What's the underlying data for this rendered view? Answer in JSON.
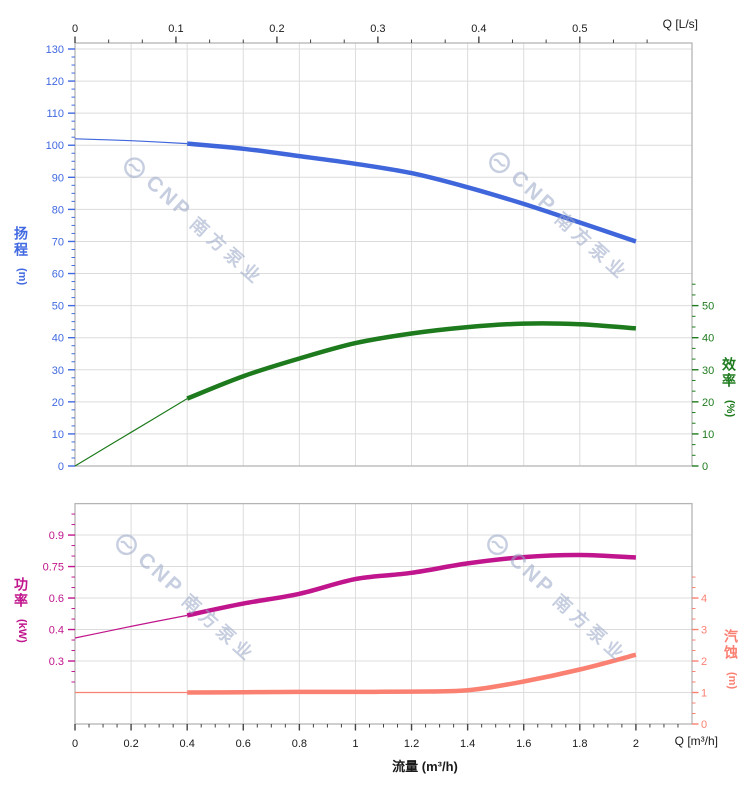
{
  "axes": {
    "top_flow": {
      "title": "Q [L/s]",
      "color": "#1a1a1a",
      "tick_labels": [
        "0",
        "0.1",
        "0.2",
        "0.3",
        "0.4",
        "0.5"
      ]
    },
    "bottom_flow": {
      "title": "Q [m³/h]",
      "xlabel": "流量 (m³/h)",
      "color": "#1a1a1a",
      "tick_labels": [
        "0",
        "0.2",
        "0.4",
        "0.6",
        "0.8",
        "1",
        "1.2",
        "1.4",
        "1.6",
        "1.8",
        "2"
      ]
    },
    "head": {
      "title": "扬程",
      "unit": "(m)",
      "color": "#4169E1",
      "tick_labels": [
        "0",
        "10",
        "20",
        "30",
        "40",
        "50",
        "60",
        "70",
        "80",
        "90",
        "100",
        "110",
        "120",
        "130"
      ]
    },
    "efficiency": {
      "title": "效率",
      "unit": "(%)",
      "color": "#1E7B1E",
      "tick_labels": [
        "0",
        "10",
        "20",
        "30",
        "40",
        "50"
      ]
    },
    "power": {
      "title": "功率",
      "unit": "(kW)",
      "color": "#C0158C",
      "tick_labels": [
        "0.3",
        "0.4",
        "0.6",
        "0.75",
        "0.9"
      ]
    },
    "npsh": {
      "title": "汽蚀",
      "unit": "(m)",
      "color": "#FA8072",
      "tick_labels": [
        "0",
        "1",
        "2",
        "3",
        "4"
      ]
    }
  },
  "watermark": {
    "brand": "CNP",
    "company": "南方泵业"
  },
  "chart_data": {
    "type": "line",
    "x_unit": "m³/h",
    "x_range": [
      0,
      2.2
    ],
    "rated_flow_range": [
      0.4,
      2.0
    ],
    "x": [
      0,
      0.2,
      0.4,
      0.6,
      0.8,
      1.0,
      1.2,
      1.4,
      1.6,
      1.8,
      2.0
    ],
    "panels": [
      {
        "name": "top",
        "series": [
          {
            "name": "head",
            "label": "扬程 (m)",
            "color": "#4066DB",
            "ylim": [
              0,
              130
            ],
            "values": [
              102,
              101.4,
              100.5,
              98.9,
              96.6,
              94.2,
              91.3,
              86.9,
              81.7,
              75.9,
              70
            ]
          },
          {
            "name": "efficiency",
            "label": "效率 (%)",
            "color": "#1D7A1D",
            "ylim": [
              0,
              50
            ],
            "values": [
              0,
              10.5,
              21,
              28,
              33.5,
              38.3,
              41.3,
              43.3,
              44.4,
              44.2,
              42.9
            ]
          }
        ]
      },
      {
        "name": "bottom",
        "series": [
          {
            "name": "power",
            "label": "功率 (kW)",
            "color": "#C0158C",
            "ylim": [
              0.25,
              1.0
            ],
            "values": [
              0.373,
              0.42,
              0.49,
              0.565,
              0.62,
              0.69,
              0.72,
              0.765,
              0.795,
              0.805,
              0.793
            ]
          },
          {
            "name": "npsh",
            "label": "汽蚀 (m)",
            "color": "#FA8072",
            "ylim": [
              0,
              7
            ],
            "values": [
              1.0,
              1.0,
              1.0,
              1.01,
              1.02,
              1.02,
              1.03,
              1.07,
              1.35,
              1.73,
              2.2
            ]
          }
        ]
      }
    ]
  }
}
